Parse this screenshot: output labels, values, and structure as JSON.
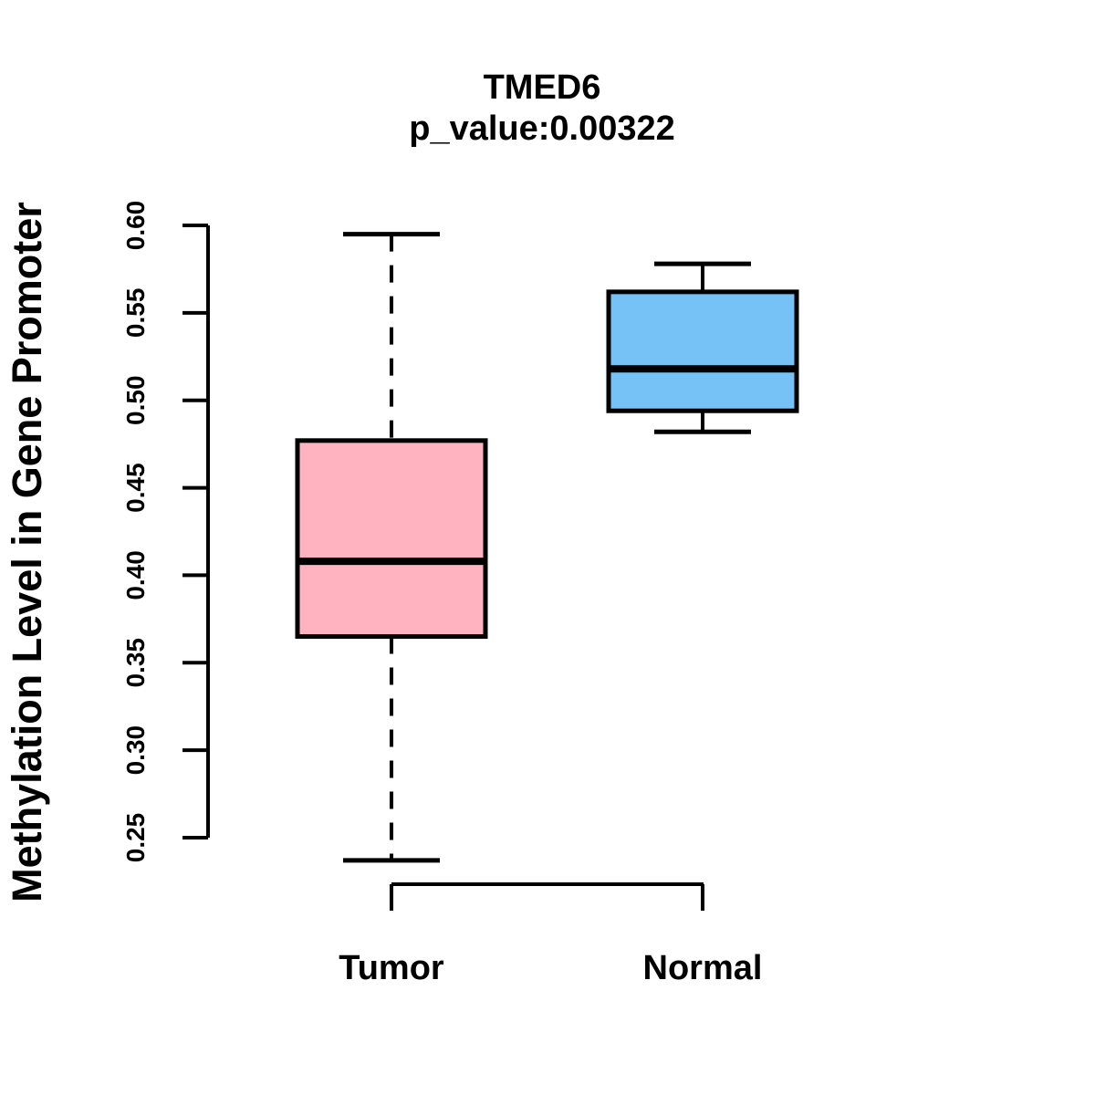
{
  "figure": {
    "background_color": "#FFFFFF",
    "line_color": "#000000"
  },
  "chart_data": {
    "type": "boxplot",
    "title": "TMED6",
    "subtitle": "p_value:0.00322",
    "ylabel": "Methylation Level in Gene Promoter",
    "xlabel": "",
    "categories": [
      "Tumor",
      "Normal"
    ],
    "ylim": [
      0.25,
      0.6
    ],
    "yticks": [
      0.25,
      0.3,
      0.35,
      0.4,
      0.45,
      0.5,
      0.55,
      0.6
    ],
    "ytick_labels": [
      "0.25",
      "0.30",
      "0.35",
      "0.40",
      "0.45",
      "0.50",
      "0.55",
      "0.60"
    ],
    "grid": false,
    "legend": "none",
    "whisker_style": "dashed",
    "series": [
      {
        "name": "Tumor",
        "fill_color": "#FFB3C1",
        "stroke_color": "#000000",
        "lower_whisker": 0.237,
        "q1": 0.365,
        "median": 0.408,
        "q3": 0.477,
        "upper_whisker": 0.595
      },
      {
        "name": "Normal",
        "fill_color": "#76C2F6",
        "stroke_color": "#000000",
        "lower_whisker": 0.482,
        "q1": 0.494,
        "median": 0.518,
        "q3": 0.562,
        "upper_whisker": 0.578
      }
    ]
  }
}
